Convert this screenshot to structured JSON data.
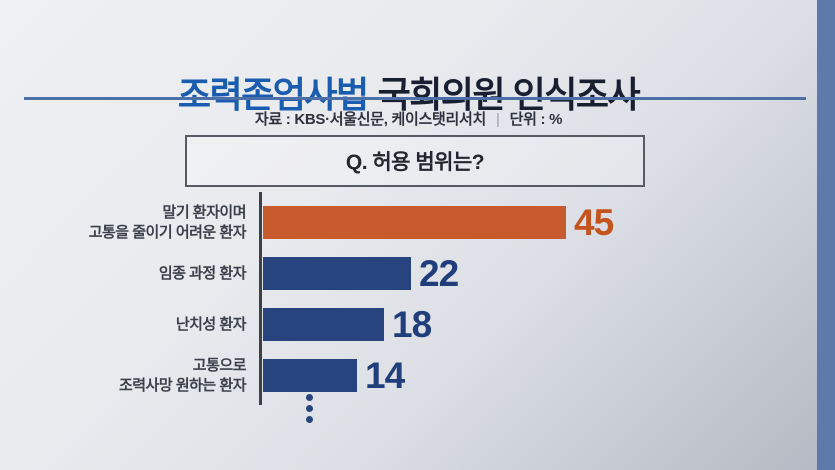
{
  "header": {
    "title_highlight": "조력존엄사법",
    "title_rest": "국회의원 인식조사",
    "source": "자료 : KBS·서울신문, 케이스탯리서치",
    "divider": "|",
    "unit": "단위 : %"
  },
  "question_box": {
    "label": "Q. 허용 범위는?"
  },
  "chart_data": {
    "type": "bar",
    "orientation": "horizontal",
    "title": "Q. 허용 범위는?",
    "unit": "%",
    "categories": [
      "말기 환자이며\n고통을 줄이기 어려운 환자",
      "임종 과정 환자",
      "난치성 환자",
      "고통으로\n조력사망 원하는 환자"
    ],
    "values": [
      45,
      22,
      18,
      14
    ],
    "bar_colors": [
      "#c75b2d",
      "#27447e",
      "#27447e",
      "#27447e"
    ],
    "value_colors": [
      "#c4531d",
      "#203e7c",
      "#203e7c",
      "#203e7c"
    ],
    "xlim": [
      0,
      50
    ],
    "grid": false,
    "legend": false,
    "truncated_items_indicator": "vertical-ellipsis-3-dots"
  },
  "colors": {
    "title_highlight": "#1a5cb0",
    "title_rest": "#181f30",
    "accent_rule": "#4d6fa8",
    "axis": "#3c4049",
    "right_strip": "#5d7aab",
    "ellipsis_dot": "#27447e"
  }
}
